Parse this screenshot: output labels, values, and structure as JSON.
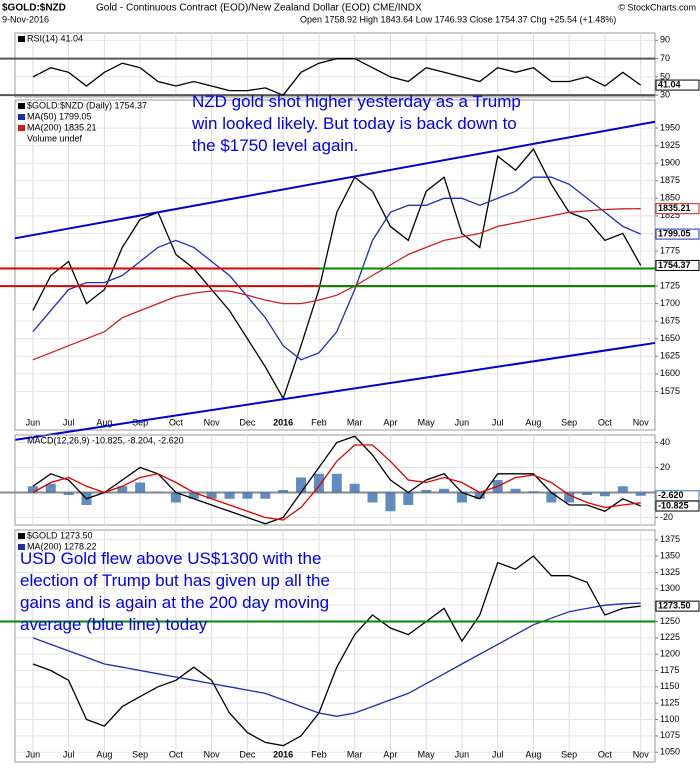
{
  "header": {
    "symbol": "$GOLD:$NZD",
    "description": "Gold - Continuous Contract (EOD)/New Zealand Dollar (EOD) CME/INDX",
    "date": "9-Nov-2016",
    "quote": "Open 1758.92 High 1843.64 Low 1746.93 Close 1754.37 Chg +25.54 (+1.48%)",
    "source": "© StockCharts.com"
  },
  "chart_data": [
    {
      "type": "line",
      "xlim": [
        -0.5,
        17.4
      ],
      "ylim": [
        28,
        98
      ],
      "yticks": [
        30,
        50,
        70,
        90
      ],
      "hlines": [
        {
          "value": 70,
          "color": "#555555"
        },
        {
          "value": 30,
          "color": "#555555"
        }
      ],
      "x": [
        0,
        0.5,
        1,
        1.5,
        2,
        2.5,
        3,
        3.5,
        4,
        4.5,
        5,
        5.5,
        6,
        6.5,
        7,
        7.5,
        8,
        8.5,
        9,
        9.5,
        10,
        10.5,
        11,
        11.5,
        12,
        12.5,
        13,
        13.5,
        14,
        14.5,
        15,
        15.5,
        16,
        16.5,
        17
      ],
      "series": [
        {
          "name": "RSI(14) 41.04",
          "color": "#000000",
          "style": "line",
          "values": [
            50,
            60,
            55,
            40,
            55,
            65,
            60,
            45,
            40,
            45,
            40,
            35,
            35,
            38,
            30,
            55,
            65,
            70,
            70,
            60,
            50,
            45,
            60,
            55,
            50,
            45,
            60,
            55,
            60,
            45,
            45,
            50,
            40,
            55,
            41.04
          ]
        }
      ],
      "last_labels": [
        {
          "value": 41.04,
          "color": "#000000"
        }
      ]
    },
    {
      "type": "line",
      "xlim": [
        -0.5,
        17.4
      ],
      "ylim": [
        1520,
        1990
      ],
      "yticks": [
        1575,
        1600,
        1625,
        1650,
        1675,
        1700,
        1725,
        1750,
        1775,
        1800,
        1825,
        1850,
        1875,
        1900,
        1925,
        1950
      ],
      "xticks": [
        {
          "value": 0,
          "label": "Jun"
        },
        {
          "value": 1,
          "label": "Jul"
        },
        {
          "value": 2,
          "label": "Aug"
        },
        {
          "value": 3,
          "label": "Sep"
        },
        {
          "value": 4,
          "label": "Oct"
        },
        {
          "value": 5,
          "label": "Nov"
        },
        {
          "value": 6,
          "label": "Dec"
        },
        {
          "value": 7,
          "label": "2016"
        },
        {
          "value": 8,
          "label": "Feb"
        },
        {
          "value": 9,
          "label": "Mar"
        },
        {
          "value": 10,
          "label": "Apr"
        },
        {
          "value": 11,
          "label": "May"
        },
        {
          "value": 12,
          "label": "Jun"
        },
        {
          "value": 13,
          "label": "Jul"
        },
        {
          "value": 14,
          "label": "Aug"
        },
        {
          "value": 15,
          "label": "Sep"
        },
        {
          "value": 16,
          "label": "Oct"
        },
        {
          "value": 17,
          "label": "Nov"
        }
      ],
      "x": [
        0,
        0.5,
        1,
        1.5,
        2,
        2.5,
        3,
        3.5,
        4,
        4.5,
        5,
        5.5,
        6,
        6.5,
        7,
        7.5,
        8,
        8.5,
        9,
        9.5,
        10,
        10.5,
        11,
        11.5,
        12,
        12.5,
        13,
        13.5,
        14,
        14.5,
        15,
        15.5,
        16,
        16.5,
        17
      ],
      "series": [
        {
          "name": "$GOLD:$NZD (Daily) 1754.37",
          "color": "#000000",
          "style": "line",
          "values": [
            1690,
            1740,
            1760,
            1700,
            1720,
            1780,
            1820,
            1830,
            1770,
            1750,
            1720,
            1690,
            1650,
            1610,
            1565,
            1640,
            1720,
            1830,
            1880,
            1860,
            1810,
            1790,
            1860,
            1880,
            1800,
            1780,
            1910,
            1890,
            1920,
            1870,
            1830,
            1820,
            1790,
            1800,
            1754.37
          ]
        },
        {
          "name": "MA(50) 1799.05",
          "color": "#1f2db0",
          "style": "line",
          "values": [
            1660,
            1690,
            1720,
            1730,
            1730,
            1740,
            1760,
            1780,
            1790,
            1780,
            1760,
            1740,
            1710,
            1680,
            1640,
            1620,
            1630,
            1660,
            1720,
            1790,
            1830,
            1840,
            1840,
            1850,
            1850,
            1840,
            1850,
            1860,
            1880,
            1880,
            1870,
            1850,
            1830,
            1810,
            1799.05
          ]
        },
        {
          "name": "MA(200) 1835.21",
          "color": "#cc2020",
          "style": "line",
          "values": [
            1620,
            1630,
            1640,
            1650,
            1660,
            1680,
            1690,
            1700,
            1710,
            1715,
            1718,
            1718,
            1712,
            1705,
            1700,
            1700,
            1705,
            1712,
            1725,
            1740,
            1755,
            1770,
            1780,
            1790,
            1795,
            1800,
            1810,
            1815,
            1820,
            1825,
            1830,
            1832,
            1834,
            1835,
            1835.21
          ]
        }
      ],
      "note": "Volume undef",
      "hlines": [
        {
          "value": 1750,
          "color": "#dd0000"
        },
        {
          "value": 1725,
          "color": "#dd0000"
        },
        {
          "value": 1750,
          "color": "#008800",
          "from": 8
        },
        {
          "value": 1725,
          "color": "#008800",
          "from": 8
        }
      ],
      "lines": [
        {
          "x": [
            -0.5,
            17.4
          ],
          "values": [
            1793,
            1959
          ],
          "color": "#0000cc"
        },
        {
          "x": [
            -0.5,
            17.4
          ],
          "values": [
            1506,
            1644
          ],
          "color": "#0000cc"
        }
      ],
      "last_labels": [
        {
          "value": 1835.21,
          "color": "#cc2020"
        },
        {
          "value": 1799.05,
          "color": "#1f2db0"
        },
        {
          "value": 1754.37,
          "color": "#000000"
        }
      ],
      "annotation": [
        "NZD gold shot higher yesterday as a Trump",
        "win looked likely. But today is back down to",
        "the $1750 level again."
      ]
    },
    {
      "type": "line",
      "xlim": [
        -0.5,
        17.4
      ],
      "ylim": [
        -26,
        46
      ],
      "yticks": [
        -20,
        20,
        40
      ],
      "legend": "MACD(12,26,9) -10.825, -8.204, -2.620",
      "hlines": [
        {
          "value": 0,
          "color": "#888888"
        }
      ],
      "x": [
        0,
        0.5,
        1,
        1.5,
        2,
        2.5,
        3,
        3.5,
        4,
        4.5,
        5,
        5.5,
        6,
        6.5,
        7,
        7.5,
        8,
        8.5,
        9,
        9.5,
        10,
        10.5,
        11,
        11.5,
        12,
        12.5,
        13,
        13.5,
        14,
        14.5,
        15,
        15.5,
        16,
        16.5,
        17
      ],
      "series": [
        {
          "color": "#3a6fb0",
          "style": "bar",
          "values": [
            5,
            7,
            -2,
            -10,
            0,
            5,
            8,
            0,
            -8,
            -5,
            -5,
            -5,
            -5,
            -5,
            2,
            12,
            15,
            15,
            7,
            -8,
            -15,
            -10,
            2,
            3,
            -8,
            -5,
            10,
            3,
            1,
            -8,
            -8,
            -2,
            -3,
            5,
            -2.62
          ]
        },
        {
          "color": "#000000",
          "style": "line",
          "values": [
            5,
            15,
            10,
            -5,
            0,
            10,
            20,
            15,
            0,
            -5,
            -10,
            -15,
            -20,
            -25,
            -20,
            0,
            20,
            40,
            45,
            30,
            10,
            0,
            10,
            15,
            0,
            -5,
            15,
            15,
            15,
            0,
            -10,
            -10,
            -15,
            -5,
            -10.825
          ]
        },
        {
          "color": "#dd0000",
          "style": "line",
          "values": [
            0,
            8,
            12,
            5,
            0,
            5,
            12,
            15,
            8,
            0,
            -5,
            -10,
            -15,
            -20,
            -22,
            -12,
            5,
            25,
            38,
            38,
            25,
            10,
            8,
            12,
            8,
            0,
            5,
            12,
            14,
            8,
            -2,
            -8,
            -12,
            -10,
            -8.204
          ]
        }
      ],
      "last_labels": [
        {
          "value": -2.62,
          "label": "-2.620",
          "color": "#3a6fb0"
        },
        {
          "value": -10.825,
          "color": "#000000"
        }
      ]
    },
    {
      "type": "line",
      "xlim": [
        -0.5,
        17.4
      ],
      "ylim": [
        1035,
        1390
      ],
      "yticks": [
        1050,
        1075,
        1100,
        1125,
        1150,
        1175,
        1200,
        1225,
        1250,
        1275,
        1300,
        1325,
        1350,
        1375
      ],
      "xticks": [
        {
          "value": 0,
          "label": "Jun"
        },
        {
          "value": 1,
          "label": "Jul"
        },
        {
          "value": 2,
          "label": "Aug"
        },
        {
          "value": 3,
          "label": "Sep"
        },
        {
          "value": 4,
          "label": "Oct"
        },
        {
          "value": 5,
          "label": "Nov"
        },
        {
          "value": 6,
          "label": "Dec"
        },
        {
          "value": 7,
          "label": "2016"
        },
        {
          "value": 8,
          "label": "Feb"
        },
        {
          "value": 9,
          "label": "Mar"
        },
        {
          "value": 10,
          "label": "Apr"
        },
        {
          "value": 11,
          "label": "May"
        },
        {
          "value": 12,
          "label": "Jun"
        },
        {
          "value": 13,
          "label": "Jul"
        },
        {
          "value": 14,
          "label": "Aug"
        },
        {
          "value": 15,
          "label": "Sep"
        },
        {
          "value": 16,
          "label": "Oct"
        },
        {
          "value": 17,
          "label": "Nov"
        }
      ],
      "x": [
        0,
        0.5,
        1,
        1.5,
        2,
        2.5,
        3,
        3.5,
        4,
        4.5,
        5,
        5.5,
        6,
        6.5,
        7,
        7.5,
        8,
        8.5,
        9,
        9.5,
        10,
        10.5,
        11,
        11.5,
        12,
        12.5,
        13,
        13.5,
        14,
        14.5,
        15,
        15.5,
        16,
        16.5,
        17
      ],
      "series": [
        {
          "name": "$GOLD 1273.50",
          "color": "#000000",
          "style": "line",
          "values": [
            1185,
            1175,
            1160,
            1100,
            1090,
            1120,
            1135,
            1150,
            1160,
            1180,
            1160,
            1110,
            1080,
            1065,
            1060,
            1075,
            1110,
            1180,
            1230,
            1260,
            1240,
            1230,
            1250,
            1270,
            1220,
            1260,
            1340,
            1330,
            1350,
            1320,
            1320,
            1310,
            1260,
            1270,
            1273.5
          ]
        },
        {
          "name": "MA(200) 1278.22",
          "color": "#1f2db0",
          "style": "line",
          "values": [
            1225,
            1215,
            1205,
            1195,
            1185,
            1180,
            1175,
            1170,
            1165,
            1160,
            1155,
            1150,
            1145,
            1140,
            1130,
            1120,
            1110,
            1105,
            1110,
            1120,
            1130,
            1140,
            1155,
            1170,
            1185,
            1200,
            1215,
            1230,
            1245,
            1255,
            1265,
            1270,
            1275,
            1277,
            1278.22
          ]
        }
      ],
      "hlines": [
        {
          "value": 1250,
          "color": "#008800"
        }
      ],
      "last_labels": [
        {
          "value": 1273.5,
          "label": "1273.50",
          "color": "#000000"
        }
      ],
      "annotation": [
        "USD Gold flew above US$1300 with the",
        "election of Trump but has given up all the",
        "gains and is again at the 200 day moving",
        "average (blue line) today"
      ]
    }
  ]
}
